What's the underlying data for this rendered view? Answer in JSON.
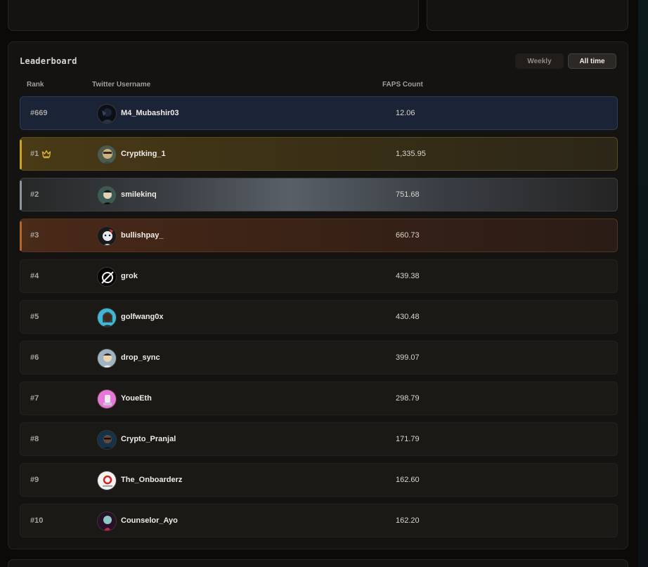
{
  "leaderboard": {
    "title": "Leaderboard",
    "toggle": {
      "weekly": "Weekly",
      "alltime": "All time"
    },
    "columns": {
      "rank": "Rank",
      "username": "Twitter Username",
      "count": "FAPS Count"
    },
    "rows": [
      {
        "rank": "#669",
        "username": "M4_Mubashir03",
        "count": "12.06"
      },
      {
        "rank": "#1",
        "username": "Cryptking_1",
        "count": "1,335.95"
      },
      {
        "rank": "#2",
        "username": "smilekinq",
        "count": "751.68"
      },
      {
        "rank": "#3",
        "username": "bullishpay_",
        "count": "660.73"
      },
      {
        "rank": "#4",
        "username": "grok",
        "count": "439.38"
      },
      {
        "rank": "#5",
        "username": "golfwang0x",
        "count": "430.48"
      },
      {
        "rank": "#6",
        "username": "drop_sync",
        "count": "399.07"
      },
      {
        "rank": "#7",
        "username": "YoueEth",
        "count": "298.79"
      },
      {
        "rank": "#8",
        "username": "Crypto_Pranjal",
        "count": "171.79"
      },
      {
        "rank": "#9",
        "username": "The_Onboarderz",
        "count": "162.60"
      },
      {
        "rank": "#10",
        "username": "Counselor_Ayo",
        "count": "162.20"
      }
    ]
  },
  "icons": {
    "crown": "crown-icon"
  },
  "colors": {
    "gold": "#c9a227",
    "silver": "#8e949b",
    "bronze": "#b5652b",
    "current_user": "#1b2436"
  }
}
